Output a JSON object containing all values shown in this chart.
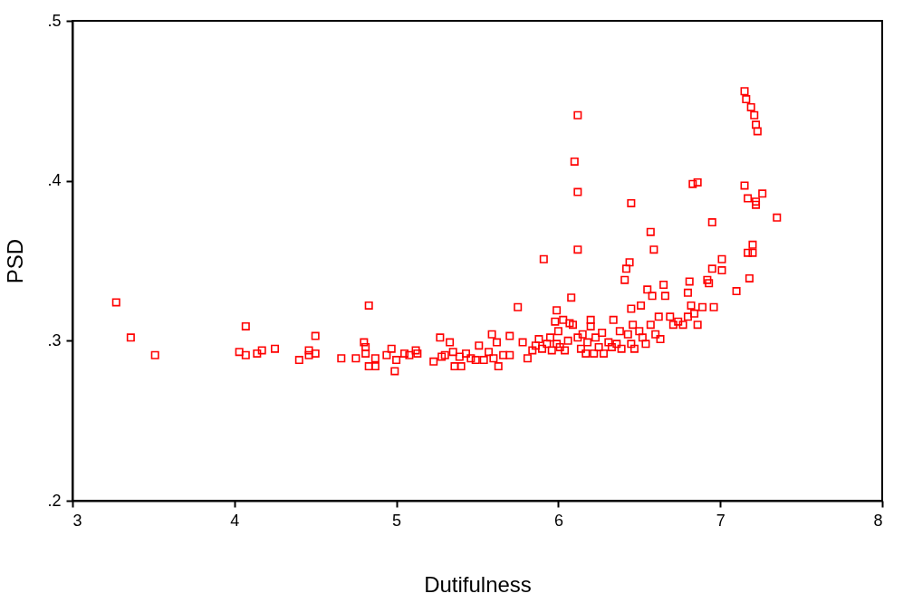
{
  "chart_data": {
    "type": "scatter",
    "xlabel": "Dutifulness",
    "ylabel": "PSD",
    "marker": "square",
    "grid": false,
    "xlim": [
      3,
      8
    ],
    "xticks": [
      3,
      4,
      5,
      6,
      7,
      8
    ],
    "ylim": [
      0.2,
      0.5
    ],
    "yticks": [
      {
        "value": 0.2,
        "label": ".2"
      },
      {
        "value": 0.3,
        "label": ".3"
      },
      {
        "value": 0.4,
        "label": ".4"
      },
      {
        "value": 0.5,
        "label": ".5"
      }
    ],
    "series": [
      {
        "color": "#ff0000",
        "x": [
          3.27,
          3.36,
          3.51,
          4.03,
          4.07,
          4.07,
          4.14,
          4.17,
          4.25,
          4.4,
          4.46,
          4.46,
          4.5,
          4.5,
          4.66,
          4.75,
          4.8,
          4.81,
          4.81,
          4.83,
          4.83,
          4.87,
          4.87,
          4.94,
          4.97,
          4.99,
          5.0,
          5.05,
          5.08,
          5.12,
          5.13,
          5.23,
          5.27,
          5.28,
          5.3,
          5.33,
          5.35,
          5.36,
          5.39,
          5.4,
          5.43,
          5.46,
          5.51,
          5.49,
          5.54,
          5.57,
          5.59,
          5.6,
          5.62,
          5.63,
          5.66,
          5.7,
          5.7,
          5.75,
          5.78,
          5.81,
          5.84,
          5.86,
          5.88,
          5.9,
          5.91,
          5.93,
          5.95,
          5.96,
          5.98,
          5.99,
          6.0,
          5.99,
          6.01,
          6.03,
          6.04,
          6.06,
          6.07,
          6.08,
          6.09,
          6.1,
          6.12,
          6.12,
          6.12,
          6.12,
          6.14,
          6.15,
          6.17,
          6.18,
          6.2,
          6.2,
          6.22,
          6.23,
          6.25,
          6.27,
          6.28,
          6.31,
          6.33,
          6.34,
          6.36,
          6.38,
          6.39,
          6.41,
          6.42,
          6.43,
          6.44,
          6.45,
          6.45,
          6.45,
          6.46,
          6.47,
          6.5,
          6.51,
          6.52,
          6.54,
          6.55,
          6.57,
          6.57,
          6.58,
          6.59,
          6.6,
          6.62,
          6.63,
          6.65,
          6.66,
          6.69,
          6.71,
          6.74,
          6.77,
          6.8,
          6.8,
          6.81,
          6.82,
          6.83,
          6.84,
          6.86,
          6.86,
          6.89,
          6.92,
          6.93,
          6.95,
          6.95,
          6.96,
          7.01,
          7.01,
          7.1,
          7.15,
          7.16,
          7.15,
          7.17,
          7.17,
          7.18,
          7.19,
          7.2,
          7.2,
          7.21,
          7.22,
          7.22,
          7.22,
          7.23,
          7.26,
          7.35
        ],
        "values": [
          0.324,
          0.302,
          0.291,
          0.293,
          0.309,
          0.291,
          0.292,
          0.294,
          0.295,
          0.288,
          0.294,
          0.291,
          0.303,
          0.292,
          0.289,
          0.289,
          0.299,
          0.296,
          0.292,
          0.322,
          0.284,
          0.289,
          0.284,
          0.291,
          0.295,
          0.281,
          0.288,
          0.292,
          0.291,
          0.294,
          0.292,
          0.287,
          0.302,
          0.29,
          0.291,
          0.299,
          0.293,
          0.284,
          0.29,
          0.284,
          0.292,
          0.289,
          0.297,
          0.288,
          0.288,
          0.293,
          0.304,
          0.289,
          0.299,
          0.284,
          0.291,
          0.303,
          0.291,
          0.321,
          0.299,
          0.289,
          0.294,
          0.297,
          0.301,
          0.295,
          0.351,
          0.298,
          0.302,
          0.294,
          0.312,
          0.298,
          0.306,
          0.319,
          0.296,
          0.313,
          0.294,
          0.3,
          0.311,
          0.327,
          0.31,
          0.412,
          0.302,
          0.441,
          0.393,
          0.357,
          0.295,
          0.304,
          0.292,
          0.299,
          0.313,
          0.309,
          0.292,
          0.302,
          0.296,
          0.305,
          0.292,
          0.299,
          0.296,
          0.313,
          0.298,
          0.306,
          0.295,
          0.338,
          0.345,
          0.304,
          0.349,
          0.32,
          0.298,
          0.386,
          0.31,
          0.295,
          0.306,
          0.322,
          0.302,
          0.298,
          0.332,
          0.368,
          0.31,
          0.328,
          0.357,
          0.304,
          0.315,
          0.301,
          0.335,
          0.328,
          0.315,
          0.31,
          0.312,
          0.31,
          0.315,
          0.33,
          0.337,
          0.322,
          0.398,
          0.317,
          0.399,
          0.31,
          0.321,
          0.338,
          0.336,
          0.374,
          0.345,
          0.321,
          0.351,
          0.344,
          0.331,
          0.456,
          0.451,
          0.397,
          0.389,
          0.355,
          0.339,
          0.446,
          0.355,
          0.36,
          0.441,
          0.387,
          0.385,
          0.435,
          0.431,
          0.392,
          0.377
        ]
      }
    ]
  }
}
